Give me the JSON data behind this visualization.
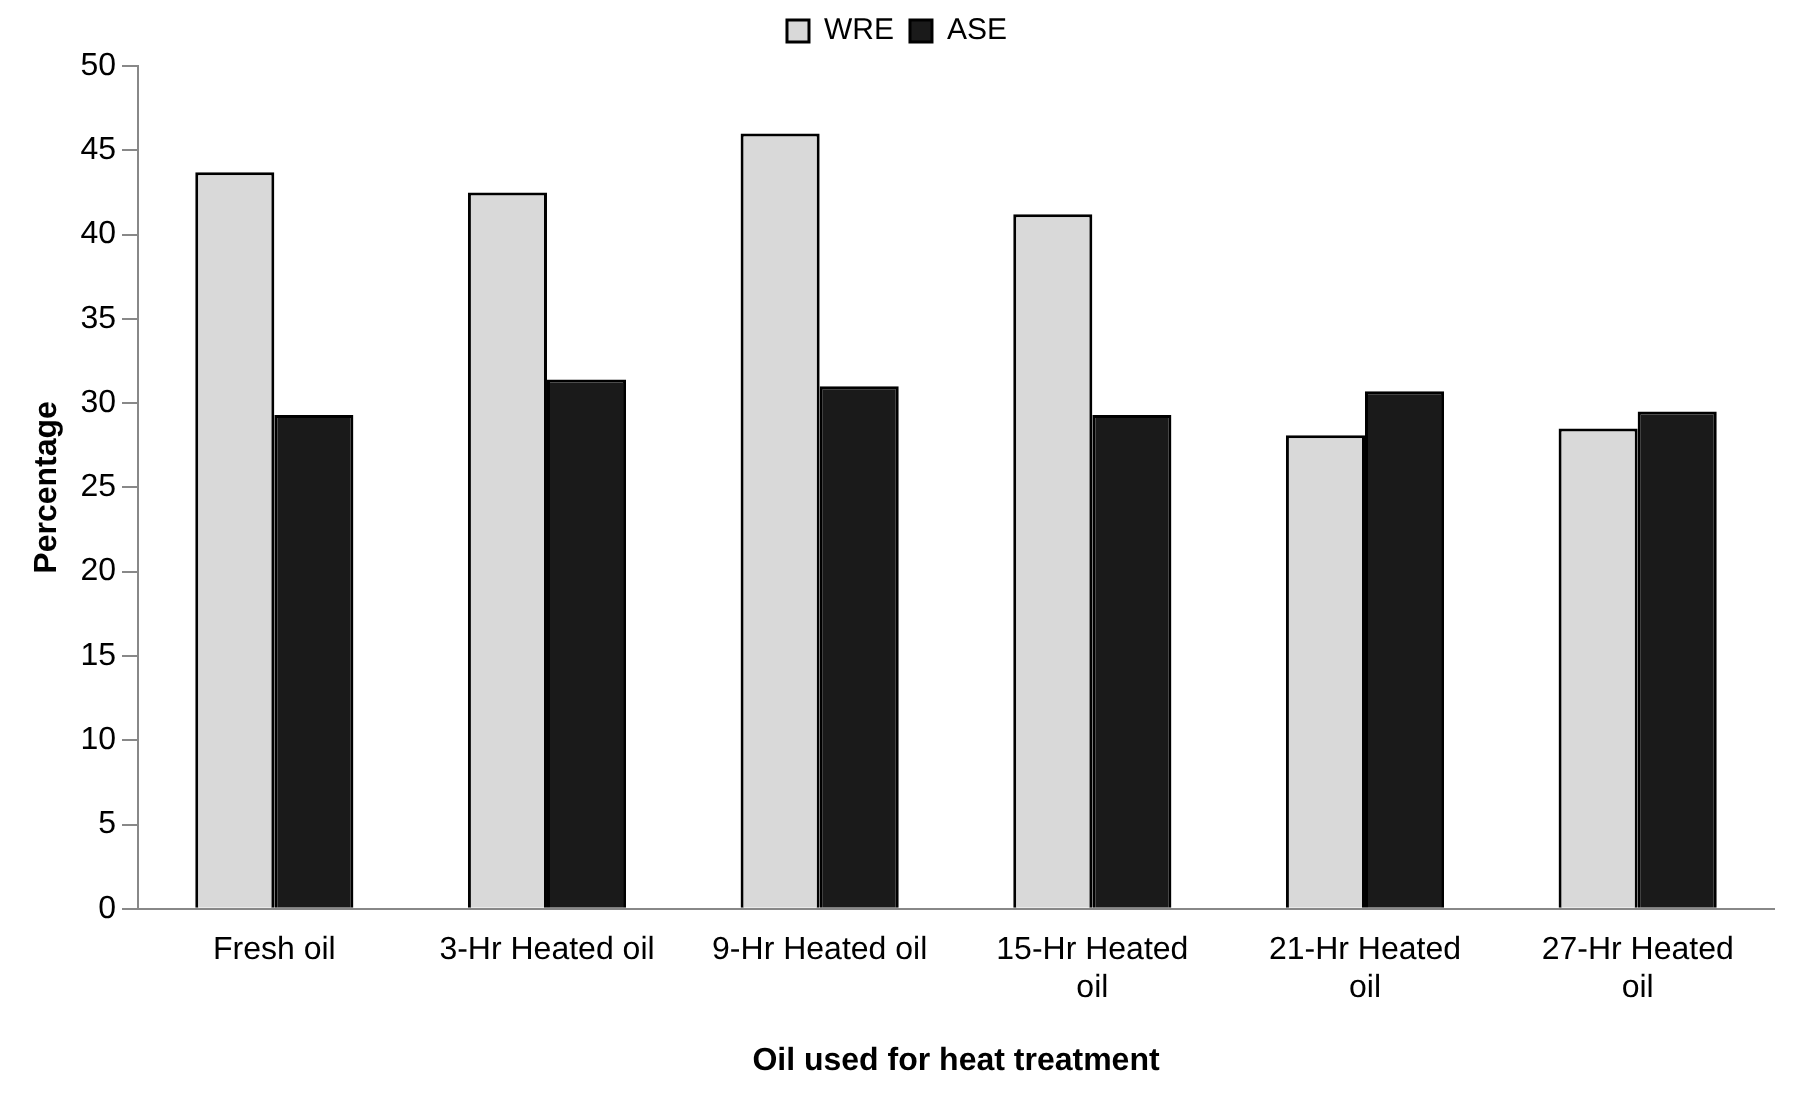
{
  "chart_data": {
    "type": "bar",
    "xlabel": "Oil used for heat treatment",
    "ylabel": "Percentage",
    "categories": [
      "Fresh oil",
      "3-Hr Heated oil",
      "9-Hr Heated oil",
      "15-Hr Heated oil",
      "21-Hr Heated oil",
      "27-Hr Heated oil"
    ],
    "series": [
      {
        "name": "WRE",
        "color": "#d9d9d9",
        "values": [
          43.7,
          42.5,
          46.0,
          41.2,
          28.1,
          28.5
        ]
      },
      {
        "name": "ASE",
        "color": "#1a1a1a",
        "values": [
          29.3,
          31.4,
          31.0,
          29.3,
          30.7,
          29.5
        ]
      }
    ],
    "ylim": [
      0,
      50
    ],
    "yticks": [
      0,
      5,
      10,
      15,
      20,
      25,
      30,
      35,
      40,
      45,
      50
    ],
    "grid": false,
    "legend": "top"
  }
}
